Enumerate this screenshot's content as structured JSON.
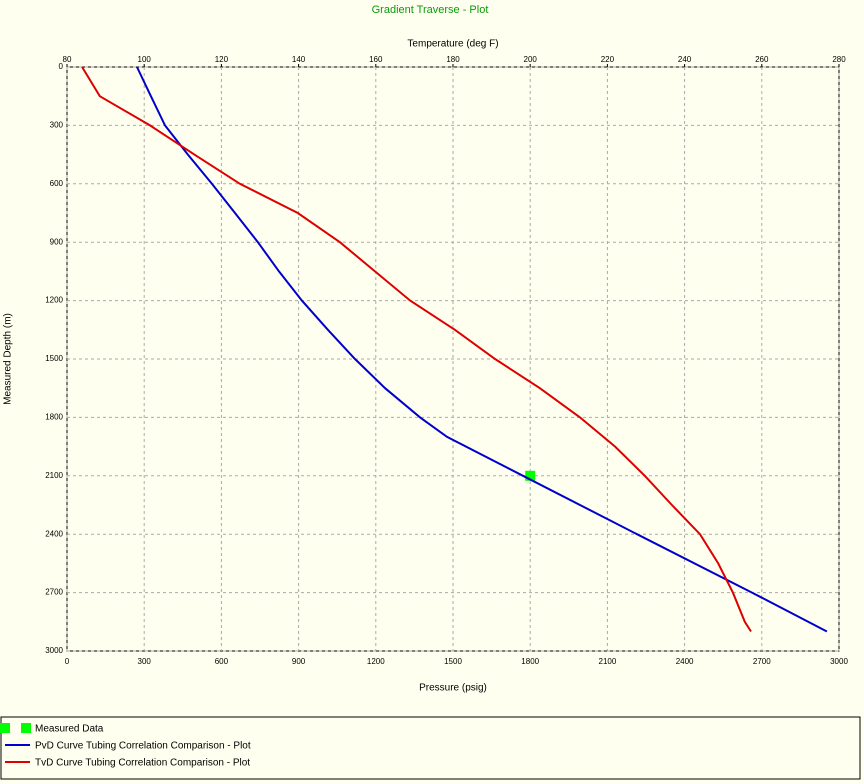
{
  "chart_data": {
    "type": "depth-profile",
    "title": "Gradient Traverse - Plot",
    "xlabel": "Pressure  (psig)",
    "x2label": "Temperature  (deg F)",
    "ylabel": "Measured Depth  (m)",
    "xlim": [
      0,
      3000
    ],
    "xticks": [
      0,
      300,
      600,
      900,
      1200,
      1500,
      1800,
      2100,
      2400,
      2700,
      3000
    ],
    "x2lim": [
      80,
      280
    ],
    "x2ticks": [
      80,
      100,
      120,
      140,
      160,
      180,
      200,
      220,
      240,
      260,
      280
    ],
    "ylim": [
      0,
      3000
    ],
    "yticks": [
      0,
      300,
      600,
      900,
      1200,
      1500,
      1800,
      2100,
      2400,
      2700,
      3000
    ],
    "y_inverted": true,
    "grid": true,
    "series": [
      {
        "name": "Measured Data",
        "color": "#00ff00",
        "marker": "square",
        "axis": "x",
        "x": [
          1800
        ],
        "y": [
          2100
        ]
      },
      {
        "name": "PvD Curve Tubing Correlation Comparison - Plot",
        "color": "#0000cc",
        "axis": "x",
        "x": [
          272,
          326,
          381,
          470,
          563,
          653,
          742,
          824,
          913,
          1014,
          1119,
          1236,
          1372,
          1477,
          1772,
          2215,
          2662,
          2953
        ],
        "y": [
          0,
          150,
          300,
          450,
          600,
          750,
          900,
          1050,
          1200,
          1350,
          1500,
          1650,
          1800,
          1900,
          2100,
          2400,
          2700,
          2900
        ]
      },
      {
        "name": "TvD Curve Tubing Correlation Comparison - Plot",
        "color": "#dd0000",
        "axis": "x2",
        "x": [
          83.9,
          88.5,
          101.5,
          113,
          124.8,
          139.8,
          150.7,
          159.8,
          168.9,
          180.5,
          190.9,
          202.5,
          212.9,
          222,
          229.7,
          236.7,
          244,
          248.7,
          252.5,
          255.6,
          257.2
        ],
        "y": [
          0,
          150,
          300,
          450,
          600,
          750,
          900,
          1050,
          1200,
          1350,
          1500,
          1650,
          1800,
          1950,
          2100,
          2250,
          2400,
          2550,
          2700,
          2850,
          2900
        ]
      }
    ]
  }
}
